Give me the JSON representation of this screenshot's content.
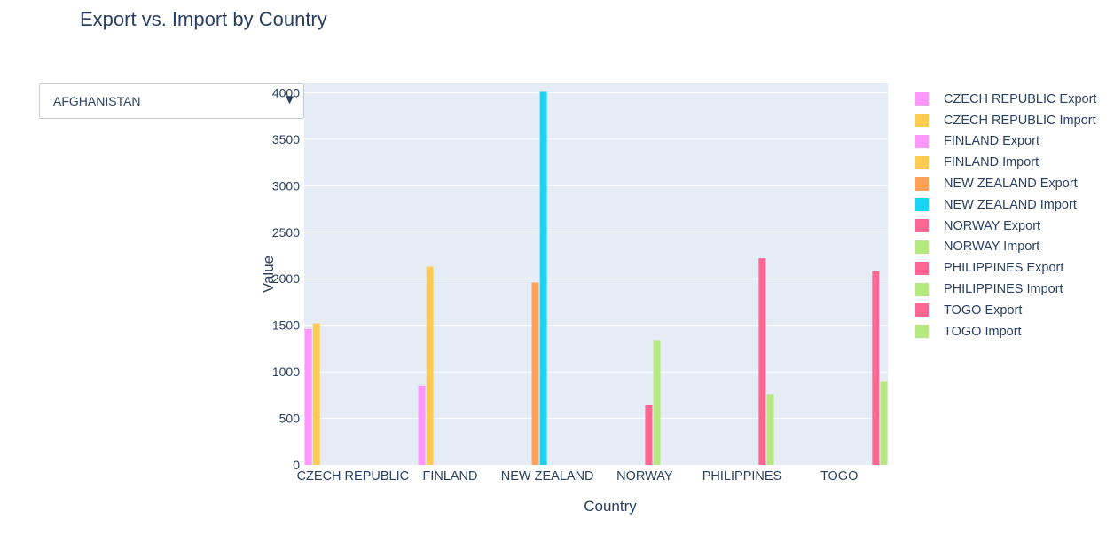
{
  "title": "Export vs. Import by Country",
  "dropdown": {
    "selected": "AFGHANISTAN",
    "arrow_icon": "triangle-down-icon"
  },
  "chart_data": {
    "type": "bar",
    "title": "Export vs. Import by Country",
    "xlabel": "Country",
    "ylabel": "Value",
    "categories": [
      "CZECH REPUBLIC",
      "FINLAND",
      "NEW ZEALAND",
      "NORWAY",
      "PHILIPPINES",
      "TOGO"
    ],
    "ylim": [
      0,
      4100
    ],
    "yticks": [
      0,
      500,
      1000,
      1500,
      2000,
      2500,
      3000,
      3500,
      4000
    ],
    "grid": true,
    "legend_position": "right",
    "series": [
      {
        "name": "CZECH REPUBLIC Export",
        "color": "#FF97FF",
        "category": "CZECH REPUBLIC",
        "slot": 0,
        "value": 1460
      },
      {
        "name": "CZECH REPUBLIC Import",
        "color": "#FECB52",
        "category": "CZECH REPUBLIC",
        "slot": 1,
        "value": 1520
      },
      {
        "name": "FINLAND Export",
        "color": "#FF97FF",
        "category": "FINLAND",
        "slot": 2,
        "value": 850
      },
      {
        "name": "FINLAND Import",
        "color": "#FECB52",
        "category": "FINLAND",
        "slot": 3,
        "value": 2130
      },
      {
        "name": "NEW ZEALAND Export",
        "color": "#FFA15A",
        "category": "NEW ZEALAND",
        "slot": 4,
        "value": 1960
      },
      {
        "name": "NEW ZEALAND Import",
        "color": "#19D3F3",
        "category": "NEW ZEALAND",
        "slot": 5,
        "value": 4010
      },
      {
        "name": "NORWAY Export",
        "color": "#FF6692",
        "category": "NORWAY",
        "slot": 6,
        "value": 640
      },
      {
        "name": "NORWAY Import",
        "color": "#B6E880",
        "category": "NORWAY",
        "slot": 7,
        "value": 1340
      },
      {
        "name": "PHILIPPINES Export",
        "color": "#FF6692",
        "category": "PHILIPPINES",
        "slot": 8,
        "value": 2220
      },
      {
        "name": "PHILIPPINES Import",
        "color": "#B6E880",
        "category": "PHILIPPINES",
        "slot": 9,
        "value": 760
      },
      {
        "name": "TOGO Export",
        "color": "#FF6692",
        "category": "TOGO",
        "slot": 10,
        "value": 2080
      },
      {
        "name": "TOGO Import",
        "color": "#B6E880",
        "category": "TOGO",
        "slot": 11,
        "value": 900
      }
    ]
  }
}
